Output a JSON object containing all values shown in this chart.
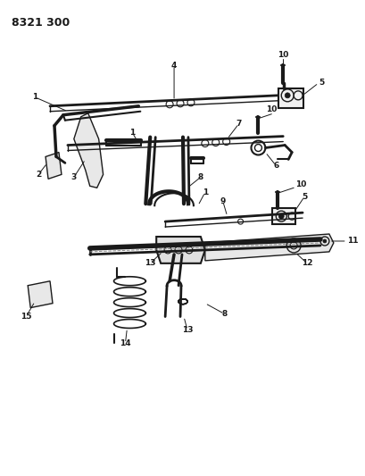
{
  "title": "8321 300",
  "bg": "#ffffff",
  "lc": "#1a1a1a",
  "fig_w": 4.1,
  "fig_h": 5.33,
  "dpi": 100,
  "fs": 6.5
}
